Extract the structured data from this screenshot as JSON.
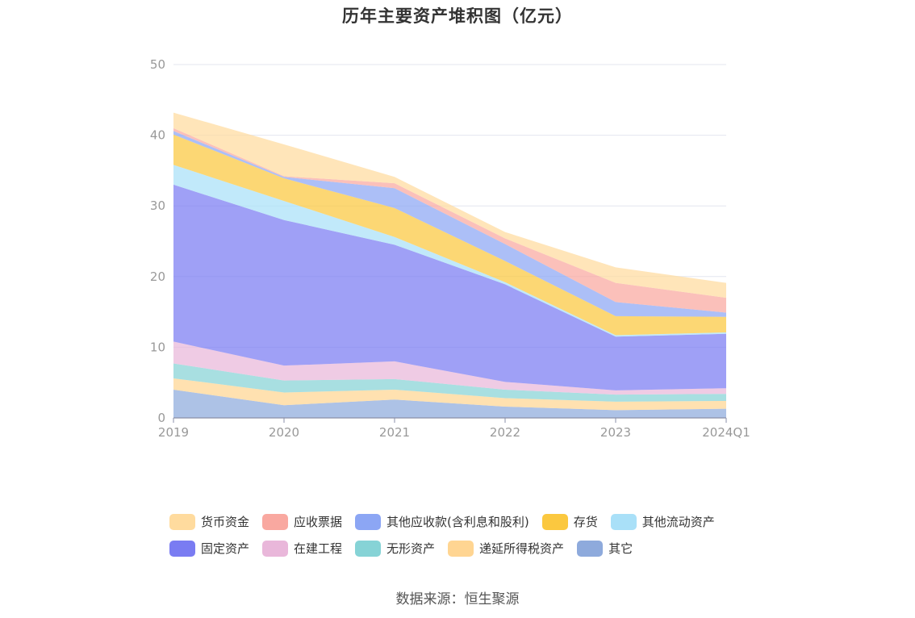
{
  "title": "历年主要资产堆积图（亿元）",
  "source": "数据来源：恒生聚源",
  "chart_data": {
    "type": "area",
    "stacked": true,
    "categories": [
      "2019",
      "2020",
      "2021",
      "2022",
      "2023",
      "2024Q1"
    ],
    "ylim": [
      0,
      50
    ],
    "yticks": [
      0,
      10,
      20,
      30,
      40,
      50
    ],
    "grid": true,
    "legend_position": "bottom",
    "series": [
      {
        "name": "其它",
        "color": "#8eaadc",
        "values": [
          4.0,
          1.8,
          2.6,
          1.6,
          1.1,
          1.3
        ]
      },
      {
        "name": "递延所得税资产",
        "color": "#ffd592",
        "values": [
          1.6,
          1.8,
          1.4,
          1.2,
          1.2,
          1.1
        ]
      },
      {
        "name": "无形资产",
        "color": "#86d3d6",
        "values": [
          2.1,
          1.7,
          1.5,
          1.2,
          1.0,
          1.0
        ]
      },
      {
        "name": "在建工程",
        "color": "#e9b7da",
        "values": [
          3.1,
          2.1,
          2.5,
          1.1,
          0.6,
          0.8
        ]
      },
      {
        "name": "固定资产",
        "color": "#7a7cf2",
        "values": [
          22.2,
          20.6,
          16.5,
          13.8,
          7.6,
          7.7
        ]
      },
      {
        "name": "其他流动资产",
        "color": "#a9e0f8",
        "values": [
          2.8,
          2.7,
          1.1,
          0.3,
          0.2,
          0.2
        ]
      },
      {
        "name": "存货",
        "color": "#fbc83f",
        "values": [
          4.3,
          3.2,
          4.1,
          3.0,
          2.7,
          2.2
        ]
      },
      {
        "name": "其他应收款(含利息和股利)",
        "color": "#8ca6f4",
        "values": [
          0.5,
          0.2,
          2.8,
          2.4,
          2.0,
          0.6
        ]
      },
      {
        "name": "应收票据",
        "color": "#f9a8a0",
        "values": [
          0.4,
          0.1,
          0.7,
          0.8,
          2.7,
          2.1
        ]
      },
      {
        "name": "货币资金",
        "color": "#ffdb9e",
        "values": [
          2.2,
          4.5,
          0.9,
          0.9,
          2.2,
          2.1
        ]
      }
    ]
  },
  "legend": {
    "row1": [
      {
        "name": "货币资金",
        "color": "#ffdb9e"
      },
      {
        "name": "应收票据",
        "color": "#f9a8a0"
      },
      {
        "name": "其他应收款(含利息和股利)",
        "color": "#8ca6f4"
      },
      {
        "name": "存货",
        "color": "#fbc83f"
      },
      {
        "name": "其他流动资产",
        "color": "#a9e0f8"
      }
    ],
    "row2": [
      {
        "name": "固定资产",
        "color": "#7a7cf2"
      },
      {
        "name": "在建工程",
        "color": "#e9b7da"
      },
      {
        "name": "无形资产",
        "color": "#86d3d6"
      },
      {
        "name": "递延所得税资产",
        "color": "#ffd592"
      },
      {
        "name": "其它",
        "color": "#8eaadc"
      }
    ]
  }
}
